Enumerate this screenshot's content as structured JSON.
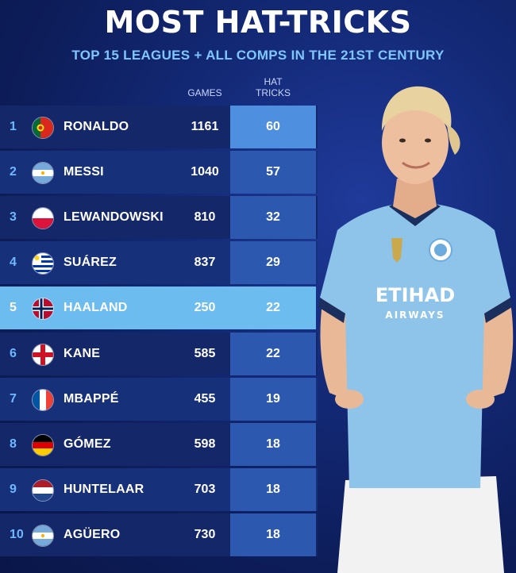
{
  "title": "MOST HAT-TRICKS",
  "subtitle": "TOP 15 LEAGUES + ALL COMPS IN THE 21ST CENTURY",
  "columns": {
    "games": "GAMES",
    "hat_line1": "HAT",
    "hat_line2": "TRICKS"
  },
  "rows": [
    {
      "rank": "1",
      "name": "RONALDO",
      "games": "1161",
      "hat_tricks": "60",
      "flag": "portugal-flag"
    },
    {
      "rank": "2",
      "name": "MESSI",
      "games": "1040",
      "hat_tricks": "57",
      "flag": "argentina-flag"
    },
    {
      "rank": "3",
      "name": "LEWANDOWSKI",
      "games": "810",
      "hat_tricks": "32",
      "flag": "poland-flag"
    },
    {
      "rank": "4",
      "name": "SUÁREZ",
      "games": "837",
      "hat_tricks": "29",
      "flag": "uruguay-flag"
    },
    {
      "rank": "5",
      "name": "HAALAND",
      "games": "250",
      "hat_tricks": "22",
      "flag": "norway-flag"
    },
    {
      "rank": "6",
      "name": "KANE",
      "games": "585",
      "hat_tricks": "22",
      "flag": "england-flag"
    },
    {
      "rank": "7",
      "name": "MBAPPÉ",
      "games": "455",
      "hat_tricks": "19",
      "flag": "france-flag"
    },
    {
      "rank": "8",
      "name": "GÓMEZ",
      "games": "598",
      "hat_tricks": "18",
      "flag": "germany-flag"
    },
    {
      "rank": "9",
      "name": "HUNTELAAR",
      "games": "703",
      "hat_tricks": "18",
      "flag": "netherlands-flag"
    },
    {
      "rank": "10",
      "name": "AGÜERO",
      "games": "730",
      "hat_tricks": "18",
      "flag": "argentina-flag"
    }
  ],
  "player": {
    "shirt_sponsor": "ETIHAD",
    "shirt_sponsor_sub": "AIRWAYS"
  },
  "colors": {
    "background": "#142a78",
    "highlight": "#6dbcf0",
    "accent": "#7fc6ff",
    "hat_column": "#2c58b0"
  }
}
